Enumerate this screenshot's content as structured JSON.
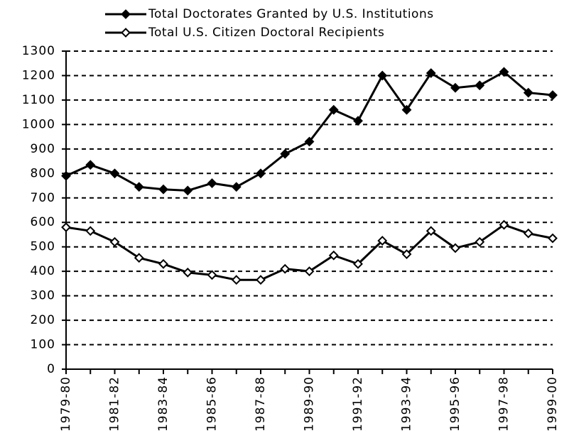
{
  "chart_data": {
    "type": "line",
    "categories": [
      "1979-80",
      null,
      "1981-82",
      null,
      "1983-84",
      null,
      "1985-86",
      null,
      "1987-88",
      null,
      "1989-90",
      null,
      "1991-92",
      null,
      "1993-94",
      null,
      "1995-96",
      null,
      "1997-98",
      null,
      "1999-00"
    ],
    "series": [
      {
        "name": "Total Doctorates Granted by U.S. Institutions",
        "color": "#000000",
        "marker_fill": "#000000",
        "values": [
          790,
          835,
          800,
          745,
          735,
          730,
          760,
          745,
          800,
          880,
          930,
          1060,
          1015,
          1200,
          1060,
          1210,
          1150,
          1160,
          1215,
          1130,
          1120
        ]
      },
      {
        "name": "Total U.S. Citizen Doctoral Recipients",
        "color": "#000000",
        "marker_fill": "#ffffff",
        "values": [
          580,
          565,
          520,
          455,
          430,
          395,
          385,
          365,
          365,
          410,
          400,
          465,
          430,
          525,
          470,
          565,
          495,
          520,
          590,
          555,
          535
        ]
      }
    ],
    "ylim": [
      0,
      1300
    ],
    "yticks": [
      0,
      100,
      200,
      300,
      400,
      500,
      600,
      700,
      800,
      900,
      1000,
      1100,
      1200,
      1300
    ],
    "grid": true
  }
}
